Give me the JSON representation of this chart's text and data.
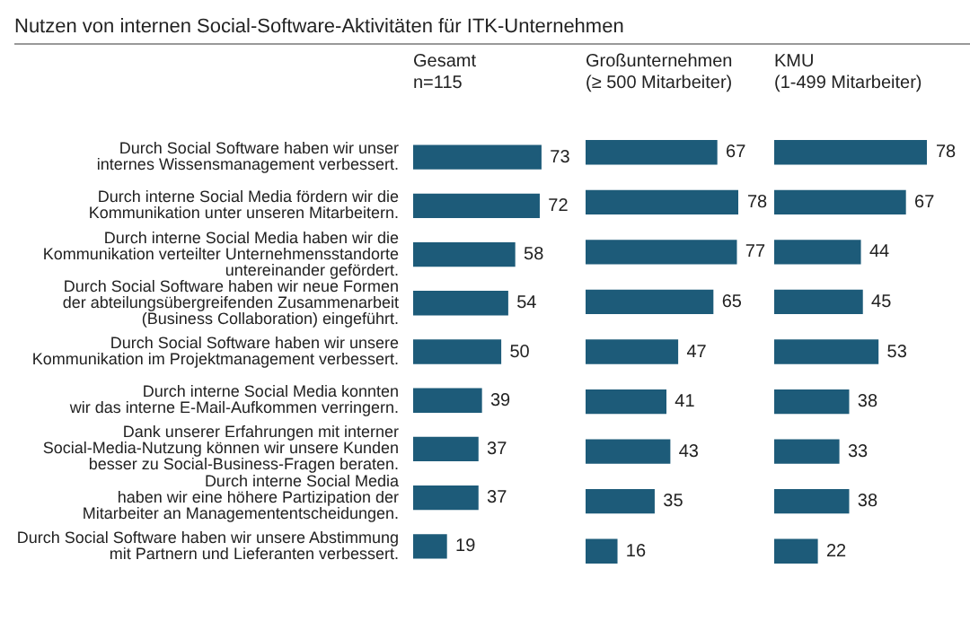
{
  "chart_data": [
    {
      "type": "bar",
      "orientation": "horizontal",
      "title": "Nutzen von internen Social-Software-Aktivitäten für ITK-Unternehmen",
      "subtitle": "Gesamt\nn=115",
      "categories": [
        "Durch Social Software haben wir unser\ninternes Wissensmanagement verbessert.",
        "Durch interne Social Media fördern wir die\nKommunikation unter unseren Mitarbeitern.",
        "Durch interne Social Media haben wir die\nKommunikation verteilter Unternehmensstandorte\nuntereinander gefördert.",
        "Durch Social Software haben wir neue Formen\nder abteilungsübergreifenden Zusammenarbeit\n(Business Collaboration) eingeführt.",
        "Durch Social Software haben wir unsere\nKommunikation im Projektmanagement verbessert.",
        "Durch interne Social Media konnten\nwir das interne E-Mail-Aufkommen verringern.",
        "Dank unserer Erfahrungen mit interner\nSocial-Media-Nutzung können wir unsere Kunden\nbesser zu Social-Business-Fragen beraten.",
        "Durch interne Social Media\nhaben wir eine höhere Partizipation der\nMitarbeiter an Managemententscheidungen.",
        "Durch Social Software haben wir unsere Abstimmung\nmit Partnern und Lieferanten verbessert."
      ],
      "values": [
        73,
        72,
        58,
        54,
        50,
        39,
        37,
        37,
        19
      ],
      "color": "#1d5b79",
      "data_labels": true,
      "tick_labels": "y"
    },
    {
      "type": "bar",
      "orientation": "horizontal",
      "subtitle": "Großunternehmen\n(≥ 500 Mitarbeiter)",
      "categories": [
        null,
        null,
        null,
        null,
        null,
        null,
        null,
        null,
        null
      ],
      "values": [
        67,
        78,
        77,
        65,
        47,
        41,
        43,
        35,
        16
      ],
      "color": "#1d5b79",
      "data_labels": true,
      "tick_labels": false
    },
    {
      "type": "bar",
      "orientation": "horizontal",
      "subtitle": "KMU\n(1-499 Mitarbeiter)",
      "categories": [
        null,
        null,
        null,
        null,
        null,
        null,
        null,
        null,
        null
      ],
      "values": [
        78,
        67,
        44,
        45,
        53,
        38,
        33,
        38,
        22
      ],
      "color": "#1d5b79",
      "data_labels": true,
      "tick_labels": false
    }
  ]
}
